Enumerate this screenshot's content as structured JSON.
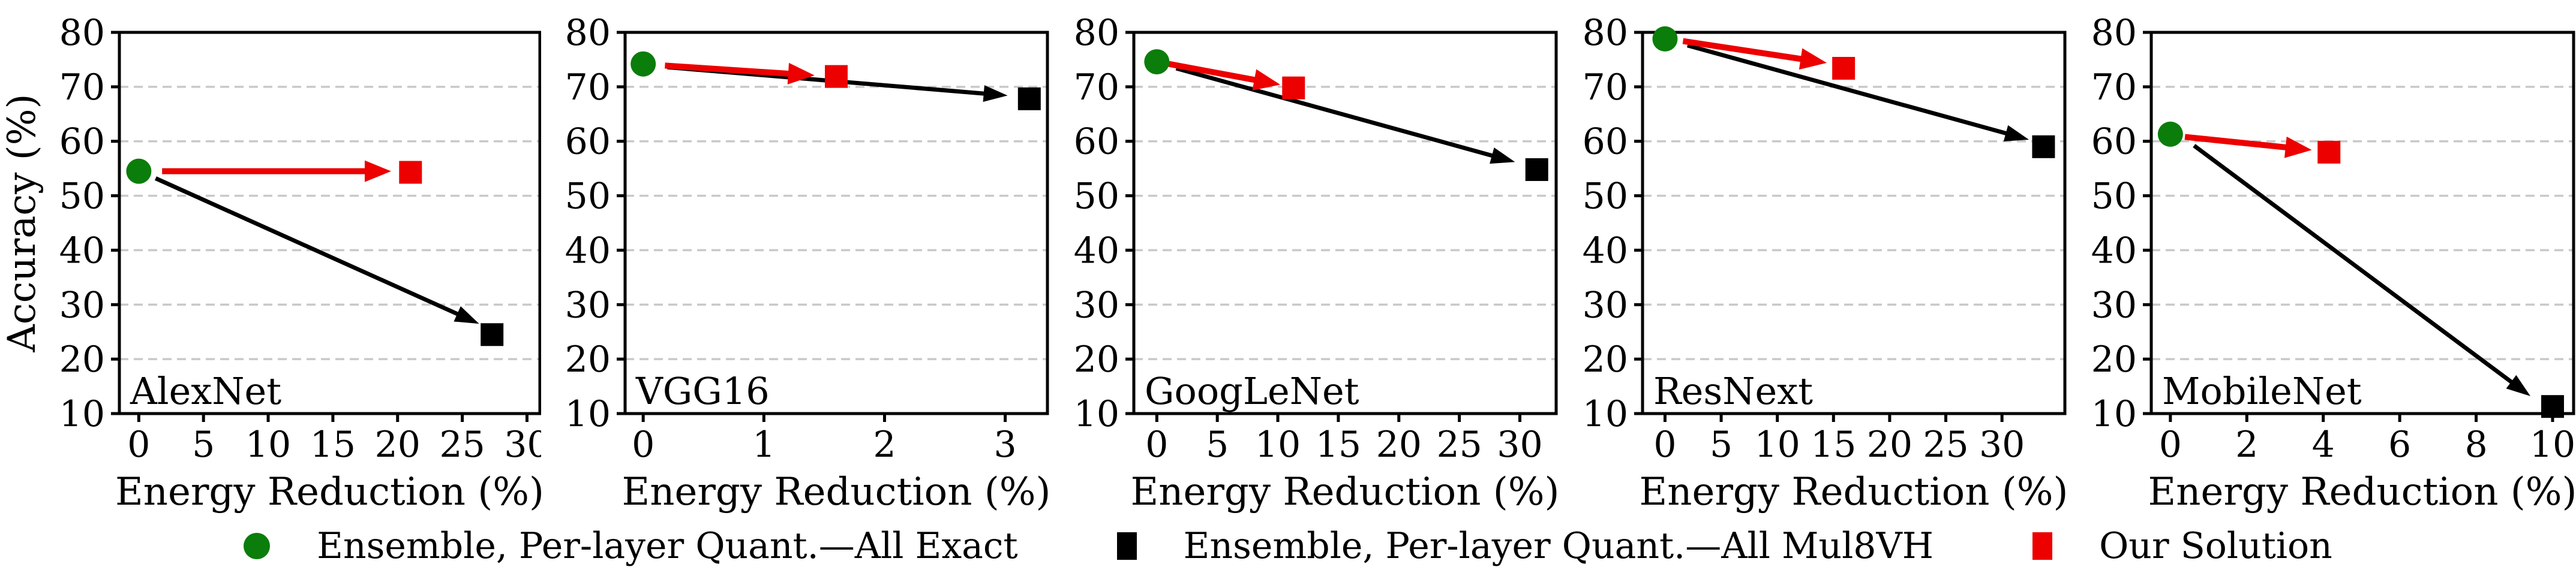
{
  "figure": {
    "background": "#ffffff",
    "grid_color": "#c9c9c9",
    "axis_color": "#000000"
  },
  "axis_shared": {
    "ylabel": "Accuracy (%)",
    "xlabel": "Energy Reduction (%)"
  },
  "legend": {
    "items": [
      {
        "marker": "circle",
        "color": "#0a7d0a",
        "label": "Ensemble, Per-layer Quant.—All Exact"
      },
      {
        "marker": "square",
        "color": "#000000",
        "label": "Ensemble, Per-layer Quant.—All Mul8VH"
      },
      {
        "marker": "square",
        "color": "#ec0000",
        "label": "Our Solution"
      }
    ]
  },
  "chart_data": [
    {
      "type": "scatter",
      "title": "AlexNet",
      "xlabel": "Energy Reduction (%)",
      "ylabel": "Accuracy (%)",
      "xlim": [
        -1.5,
        31.0
      ],
      "ylim": [
        10,
        80
      ],
      "xticks": [
        0,
        5,
        10,
        15,
        20,
        25,
        30
      ],
      "yticks": [
        10,
        20,
        30,
        40,
        50,
        60,
        70,
        80
      ],
      "grid": "horizontal-dashed",
      "series": [
        {
          "name": "Ensemble, Per-layer Quant.—All Exact",
          "marker": "circle",
          "color": "#0a7d0a",
          "points": [
            [
              0,
              54.5
            ]
          ]
        },
        {
          "name": "Ensemble, Per-layer Quant.—All Mul8VH",
          "marker": "square",
          "color": "#000000",
          "points": [
            [
              27.3,
              24.5
            ]
          ]
        },
        {
          "name": "Our Solution",
          "marker": "square",
          "color": "#ec0000",
          "points": [
            [
              21.0,
              54.3
            ]
          ]
        }
      ],
      "arrows": [
        {
          "color": "#000000",
          "from": [
            1.3,
            53.2
          ],
          "to": [
            26.3,
            26.5
          ],
          "width": 7,
          "head": [
            40,
            14
          ]
        },
        {
          "color": "#ec0000",
          "from": [
            1.8,
            54.5
          ],
          "to": [
            19.5,
            54.5
          ],
          "width": 10,
          "head": [
            44,
            18
          ]
        }
      ]
    },
    {
      "type": "scatter",
      "title": "VGG16",
      "xlabel": "Energy Reduction (%)",
      "ylabel": "",
      "xlim": [
        -0.15,
        3.35
      ],
      "ylim": [
        10,
        80
      ],
      "xticks": [
        0,
        1,
        2,
        3
      ],
      "yticks": [
        10,
        20,
        30,
        40,
        50,
        60,
        70,
        80
      ],
      "grid": "horizontal-dashed",
      "series": [
        {
          "name": "Ensemble, Per-layer Quant.—All Exact",
          "marker": "circle",
          "color": "#0a7d0a",
          "points": [
            [
              0,
              74.2
            ]
          ]
        },
        {
          "name": "Ensemble, Per-layer Quant.—All Mul8VH",
          "marker": "square",
          "color": "#000000",
          "points": [
            [
              3.2,
              67.8
            ]
          ]
        },
        {
          "name": "Our Solution",
          "marker": "square",
          "color": "#ec0000",
          "points": [
            [
              1.6,
              71.9
            ]
          ]
        }
      ],
      "arrows": [
        {
          "color": "#000000",
          "from": [
            0.2,
            73.6
          ],
          "to": [
            3.02,
            68.4
          ],
          "width": 7,
          "head": [
            40,
            14
          ]
        },
        {
          "color": "#ec0000",
          "from": [
            0.18,
            73.9
          ],
          "to": [
            1.42,
            72.1
          ],
          "width": 10,
          "head": [
            44,
            18
          ]
        }
      ]
    },
    {
      "type": "scatter",
      "title": "GoogLeNet",
      "xlabel": "Energy Reduction (%)",
      "ylabel": "",
      "xlim": [
        -1.9,
        33.0
      ],
      "ylim": [
        10,
        80
      ],
      "xticks": [
        0,
        5,
        10,
        15,
        20,
        25,
        30
      ],
      "yticks": [
        10,
        20,
        30,
        40,
        50,
        60,
        70,
        80
      ],
      "grid": "horizontal-dashed",
      "series": [
        {
          "name": "Ensemble, Per-layer Quant.—All Exact",
          "marker": "circle",
          "color": "#0a7d0a",
          "points": [
            [
              0,
              74.6
            ]
          ]
        },
        {
          "name": "Ensemble, Per-layer Quant.—All Mul8VH",
          "marker": "square",
          "color": "#000000",
          "points": [
            [
              31.4,
              54.8
            ]
          ]
        },
        {
          "name": "Our Solution",
          "marker": "square",
          "color": "#ec0000",
          "points": [
            [
              11.3,
              69.8
            ]
          ]
        }
      ],
      "arrows": [
        {
          "color": "#000000",
          "from": [
            1.6,
            73.4
          ],
          "to": [
            29.6,
            56.2
          ],
          "width": 7,
          "head": [
            40,
            14
          ]
        },
        {
          "color": "#ec0000",
          "from": [
            1.0,
            74.2
          ],
          "to": [
            10.2,
            70.4
          ],
          "width": 10,
          "head": [
            44,
            18
          ]
        }
      ]
    },
    {
      "type": "scatter",
      "title": "ResNext",
      "xlabel": "Energy Reduction (%)",
      "ylabel": "",
      "xlim": [
        -2.0,
        35.6
      ],
      "ylim": [
        10,
        80
      ],
      "xticks": [
        0,
        5,
        10,
        15,
        20,
        25,
        30
      ],
      "yticks": [
        10,
        20,
        30,
        40,
        50,
        60,
        70,
        80
      ],
      "grid": "horizontal-dashed",
      "series": [
        {
          "name": "Ensemble, Per-layer Quant.—All Exact",
          "marker": "circle",
          "color": "#0a7d0a",
          "points": [
            [
              0,
              78.8
            ]
          ]
        },
        {
          "name": "Ensemble, Per-layer Quant.—All Mul8VH",
          "marker": "square",
          "color": "#000000",
          "points": [
            [
              33.7,
              59.0
            ]
          ]
        },
        {
          "name": "Our Solution",
          "marker": "square",
          "color": "#ec0000",
          "points": [
            [
              15.9,
              73.4
            ]
          ]
        }
      ],
      "arrows": [
        {
          "color": "#000000",
          "from": [
            2.0,
            77.6
          ],
          "to": [
            32.4,
            60.3
          ],
          "width": 7,
          "head": [
            40,
            14
          ]
        },
        {
          "color": "#ec0000",
          "from": [
            1.6,
            78.4
          ],
          "to": [
            14.4,
            74.4
          ],
          "width": 10,
          "head": [
            44,
            18
          ]
        }
      ]
    },
    {
      "type": "scatter",
      "title": "MobileNet",
      "xlabel": "Energy Reduction (%)",
      "ylabel": "",
      "xlim": [
        -0.5,
        10.55
      ],
      "ylim": [
        10,
        80
      ],
      "xticks": [
        0,
        2,
        4,
        6,
        8,
        10
      ],
      "yticks": [
        10,
        20,
        30,
        40,
        50,
        60,
        70,
        80
      ],
      "grid": "horizontal-dashed",
      "series": [
        {
          "name": "Ensemble, Per-layer Quant.—All Exact",
          "marker": "circle",
          "color": "#0a7d0a",
          "points": [
            [
              0,
              61.3
            ]
          ]
        },
        {
          "name": "Ensemble, Per-layer Quant.—All Mul8VH",
          "marker": "square",
          "color": "#000000",
          "points": [
            [
              10.0,
              11.3
            ]
          ]
        },
        {
          "name": "Our Solution",
          "marker": "square",
          "color": "#ec0000",
          "points": [
            [
              4.15,
              58.0
            ]
          ]
        }
      ],
      "arrows": [
        {
          "color": "#000000",
          "from": [
            0.62,
            59.2
          ],
          "to": [
            9.42,
            13.2
          ],
          "width": 7,
          "head": [
            40,
            14
          ]
        },
        {
          "color": "#ec0000",
          "from": [
            0.38,
            60.8
          ],
          "to": [
            3.7,
            58.4
          ],
          "width": 10,
          "head": [
            44,
            18
          ]
        }
      ]
    }
  ]
}
